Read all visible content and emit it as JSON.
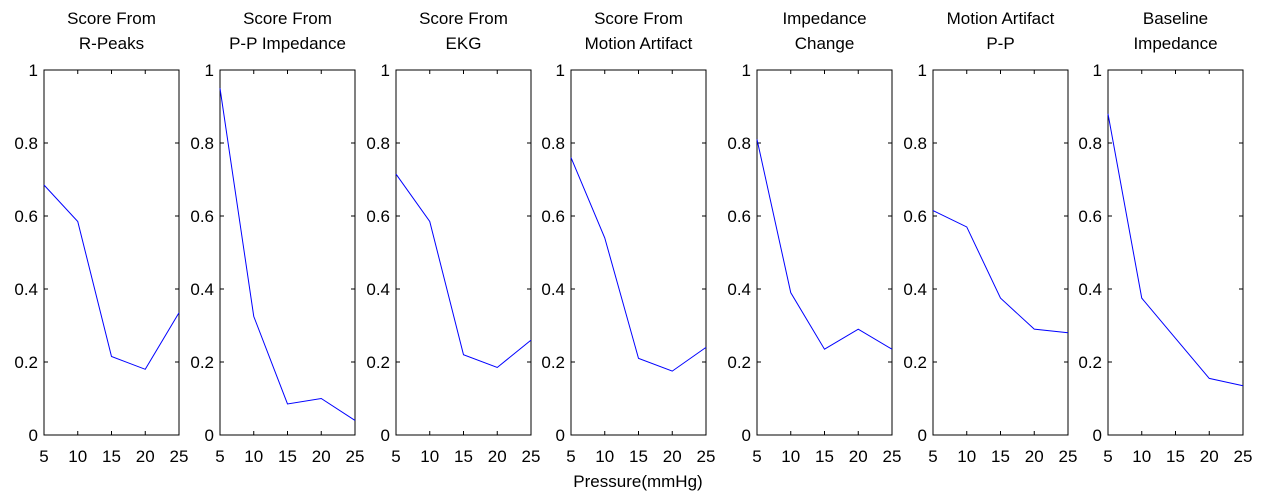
{
  "figure": {
    "xlabel": "Pressure(mmHg)"
  },
  "chart_data": [
    {
      "type": "line",
      "title_lines": [
        "Score From",
        "R-Peaks"
      ],
      "x": [
        5,
        10,
        15,
        20,
        25
      ],
      "y": [
        0.685,
        0.585,
        0.215,
        0.18,
        0.335
      ],
      "xlim": [
        5,
        25
      ],
      "ylim": [
        0,
        1
      ],
      "xticks": [
        5,
        10,
        15,
        20,
        25
      ],
      "yticks": [
        0,
        0.2,
        0.4,
        0.6,
        0.8,
        1
      ],
      "line_color": "#0000ff",
      "grid": false
    },
    {
      "type": "line",
      "title_lines": [
        "Score From",
        "P-P Impedance"
      ],
      "x": [
        5,
        10,
        15,
        20,
        25
      ],
      "y": [
        0.95,
        0.325,
        0.085,
        0.1,
        0.04
      ],
      "xlim": [
        5,
        25
      ],
      "ylim": [
        0,
        1
      ],
      "xticks": [
        5,
        10,
        15,
        20,
        25
      ],
      "yticks": [
        0,
        0.2,
        0.4,
        0.6,
        0.8,
        1
      ],
      "line_color": "#0000ff",
      "grid": false
    },
    {
      "type": "line",
      "title_lines": [
        "Score From",
        "EKG"
      ],
      "x": [
        5,
        10,
        15,
        20,
        25
      ],
      "y": [
        0.715,
        0.585,
        0.22,
        0.185,
        0.26
      ],
      "xlim": [
        5,
        25
      ],
      "ylim": [
        0,
        1
      ],
      "xticks": [
        5,
        10,
        15,
        20,
        25
      ],
      "yticks": [
        0,
        0.2,
        0.4,
        0.6,
        0.8,
        1
      ],
      "line_color": "#0000ff",
      "grid": false
    },
    {
      "type": "line",
      "title_lines": [
        "Score From",
        "Motion Artifact"
      ],
      "x": [
        5,
        10,
        15,
        20,
        25
      ],
      "y": [
        0.76,
        0.54,
        0.21,
        0.175,
        0.24
      ],
      "xlim": [
        5,
        25
      ],
      "ylim": [
        0,
        1
      ],
      "xticks": [
        5,
        10,
        15,
        20,
        25
      ],
      "yticks": [
        0,
        0.2,
        0.4,
        0.6,
        0.8,
        1
      ],
      "line_color": "#0000ff",
      "grid": false
    },
    {
      "type": "line",
      "title_lines": [
        "Impedance",
        "Change"
      ],
      "x": [
        5,
        10,
        15,
        20,
        25
      ],
      "y": [
        0.81,
        0.39,
        0.235,
        0.29,
        0.235
      ],
      "xlim": [
        5,
        25
      ],
      "ylim": [
        0,
        1
      ],
      "xticks": [
        5,
        10,
        15,
        20,
        25
      ],
      "yticks": [
        0,
        0.2,
        0.4,
        0.6,
        0.8,
        1
      ],
      "line_color": "#0000ff",
      "grid": false
    },
    {
      "type": "line",
      "title_lines": [
        "Motion Artifact",
        "P-P"
      ],
      "x": [
        5,
        10,
        15,
        20,
        25
      ],
      "y": [
        0.615,
        0.57,
        0.375,
        0.29,
        0.28
      ],
      "xlim": [
        5,
        25
      ],
      "ylim": [
        0,
        1
      ],
      "xticks": [
        5,
        10,
        15,
        20,
        25
      ],
      "yticks": [
        0,
        0.2,
        0.4,
        0.6,
        0.8,
        1
      ],
      "line_color": "#0000ff",
      "grid": false
    },
    {
      "type": "line",
      "title_lines": [
        "Baseline",
        "Impedance"
      ],
      "x": [
        5,
        10,
        15,
        20,
        25
      ],
      "y": [
        0.88,
        0.375,
        0.265,
        0.155,
        0.135
      ],
      "xlim": [
        5,
        25
      ],
      "ylim": [
        0,
        1
      ],
      "xticks": [
        5,
        10,
        15,
        20,
        25
      ],
      "yticks": [
        0,
        0.2,
        0.4,
        0.6,
        0.8,
        1
      ],
      "line_color": "#0000ff",
      "grid": false
    }
  ]
}
